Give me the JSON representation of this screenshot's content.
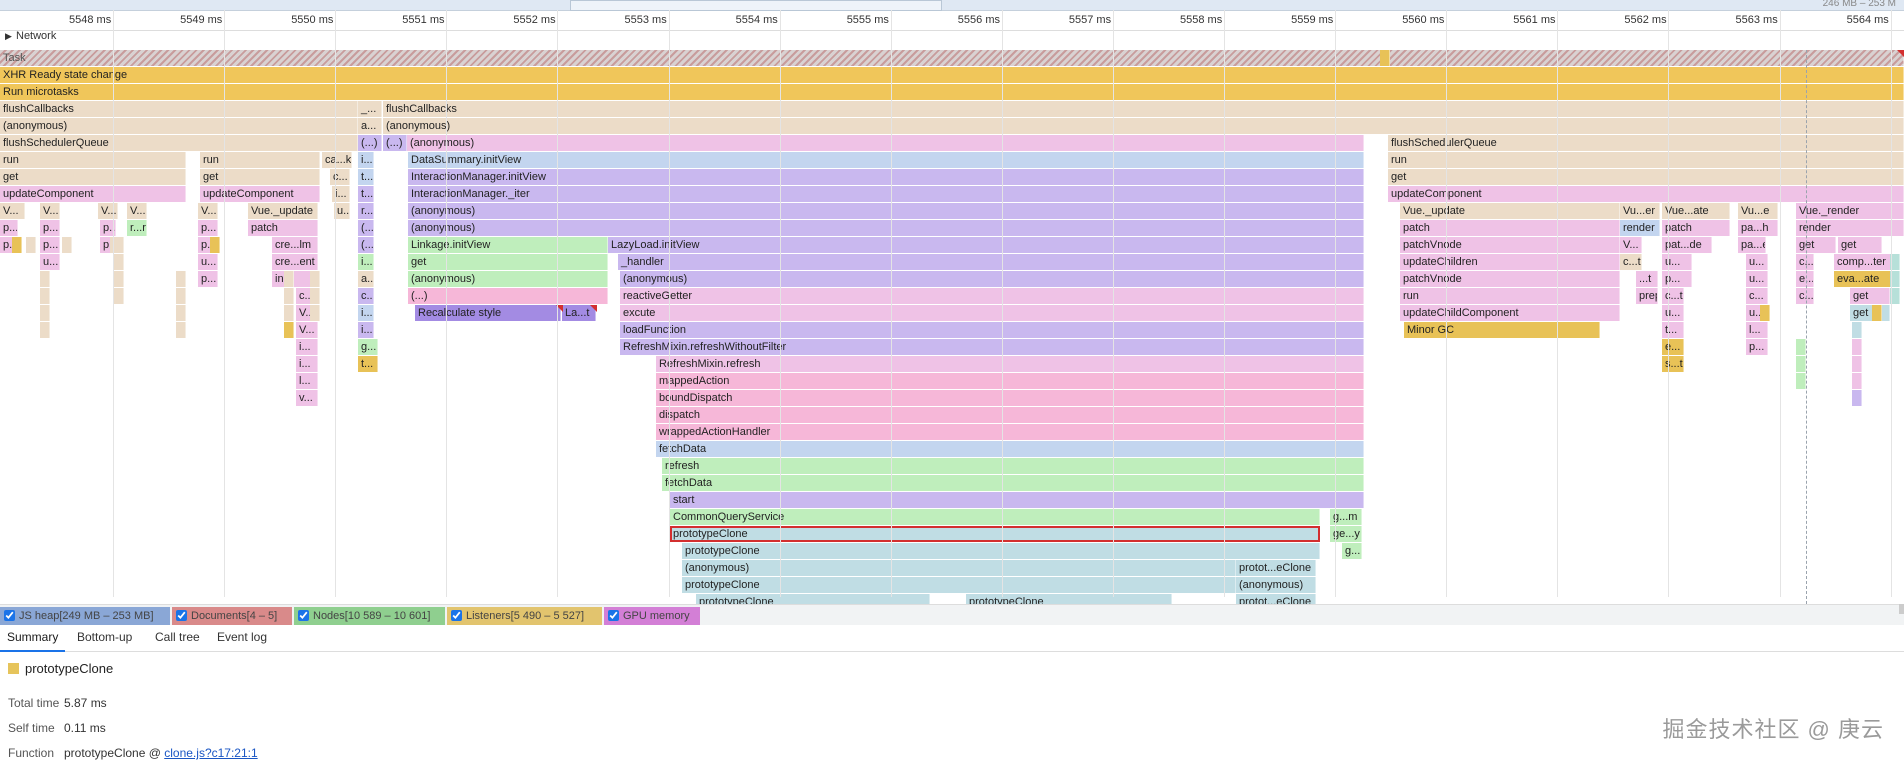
{
  "memory_top": "246 MB – 253 M",
  "ruler": {
    "ticks": [
      {
        "label": "5548 ms"
      },
      {
        "label": "5549 ms"
      },
      {
        "label": "5550 ms"
      },
      {
        "label": "5551 ms"
      },
      {
        "label": "5552 ms"
      },
      {
        "label": "5553 ms"
      },
      {
        "label": "5554 ms"
      },
      {
        "label": "5555 ms"
      },
      {
        "label": "5556 ms"
      },
      {
        "label": "5557 ms"
      },
      {
        "label": "5558 ms"
      },
      {
        "label": "5559 ms"
      },
      {
        "label": "5560 ms"
      },
      {
        "label": "5561 ms"
      },
      {
        "label": "5562 ms"
      },
      {
        "label": "5563 ms"
      },
      {
        "label": "5564 ms"
      }
    ]
  },
  "network_label": "Network",
  "flame": {
    "rows": [
      [
        "Task"
      ],
      [
        "XHR Ready state change"
      ],
      [
        "Run microtasks"
      ],
      [
        "flushCallbacks",
        "_...",
        "flushCallbacks"
      ],
      [
        "(anonymous)",
        "a...",
        "(anonymous)"
      ],
      [
        "flushSchedulerQueue",
        "(...)",
        "(...)",
        "(anonymous)",
        "flushSchedulerQueue"
      ],
      [
        "run",
        "run",
        "ca...ks",
        "i...",
        "DataSummary.initView",
        "run"
      ],
      [
        "get",
        "get",
        "c...",
        "t...",
        "InteractionManager.initView",
        "get"
      ],
      [
        "updateComponent",
        "updateComponent",
        "i...",
        "t...",
        "InteractionManager._iter",
        "updateComponent"
      ],
      [
        "V...",
        "V...",
        "V...",
        "V...",
        "V...",
        "Vue._update",
        "u...",
        "r...",
        "(anonymous)",
        "Vue._update",
        "Vu...er",
        "Vue...ate",
        "Vu...e",
        "Vue._render"
      ],
      [
        "p...",
        "p...",
        "p...",
        "r...r",
        "p...",
        "patch",
        "(...)",
        "(anonymous)",
        "patch",
        "render",
        "patch",
        "pa...h",
        "render"
      ],
      [
        "p...",
        "p...",
        "p...",
        "p...",
        "cre...lm",
        "(...)",
        "Linkage.initView",
        "LazyLoad.initView",
        "patchVnode",
        "V...",
        "pat...de",
        "pa...e",
        "get",
        "get"
      ],
      [
        "u...",
        "u...",
        "cre...ent",
        "i...",
        "get",
        "_handler",
        "updateChildren",
        "c...t",
        "u...",
        "u...",
        "c...r",
        "comp...ter"
      ],
      [
        "p...",
        "init",
        "a...",
        "(anonymous)",
        "(anonymous)",
        "patchVnode",
        "...t",
        "p...",
        "u...",
        "e...",
        "eva...ate"
      ],
      [
        "c...",
        "c...",
        "(...)",
        "reactiveGetter",
        "run",
        "prepatch",
        "c...t",
        "c...",
        "c...",
        "get",
        "get"
      ],
      [
        "V...",
        "i...",
        "Recalculate style",
        "La...t",
        "excute",
        "updateChildComponent",
        "u...",
        "u...",
        "get"
      ],
      [
        "V...",
        "i...",
        "loadFunction",
        "Minor GC",
        "t...",
        "l..."
      ],
      [
        "i...",
        "g...",
        "RefreshMixin.refreshWithoutFilter",
        "e...",
        "p..."
      ],
      [
        "i...",
        "t...",
        "RefreshMixin.refresh",
        "s...t"
      ],
      [
        "l...",
        "mappedAction"
      ],
      [
        "v...",
        "boundDispatch"
      ],
      [
        "dispatch"
      ],
      [
        "wrappedActionHandler"
      ],
      [
        "fetchData"
      ],
      [
        "refresh"
      ],
      [
        "fetchData"
      ],
      [
        "start"
      ],
      [
        "CommonQueryService",
        "g...m"
      ],
      [
        "prototypeClone",
        "ge...y"
      ],
      [
        "prototypeClone",
        "g..."
      ],
      [
        "(anonymous)",
        "protot...eClone"
      ],
      [
        "prototypeClone",
        "(anonymous)"
      ],
      [
        "prototypeClone",
        "prototypeClone",
        "protot...eClone"
      ]
    ]
  },
  "counters": [
    {
      "label": "JS heap[249 MB – 253 MB]",
      "color": "#8aa7d6",
      "checked": true
    },
    {
      "label": "Documents[4 – 5]",
      "color": "#d98a8a",
      "checked": true
    },
    {
      "label": "Nodes[10 589 – 10 601]",
      "color": "#8fcf8f",
      "checked": true
    },
    {
      "label": "Listeners[5 490 – 5 527]",
      "color": "#e2c46e",
      "checked": true
    },
    {
      "label": "GPU memory",
      "color": "#d37fd6",
      "checked": true
    }
  ],
  "tabs": [
    {
      "label": "Summary",
      "active": true
    },
    {
      "label": "Bottom-up",
      "active": false
    },
    {
      "label": "Call tree",
      "active": false
    },
    {
      "label": "Event log",
      "active": false
    }
  ],
  "summary": {
    "title": "prototypeClone",
    "swatch_color": "#e6c45b",
    "total_time_label": "Total time",
    "total_time": "5.87 ms",
    "self_time_label": "Self time",
    "self_time": "0.11 ms",
    "function_label": "Function",
    "function_name": "prototypeClone @",
    "function_link": "clone.js?c17:21:1"
  },
  "watermark": "掘金技术社区 @ 庚云"
}
